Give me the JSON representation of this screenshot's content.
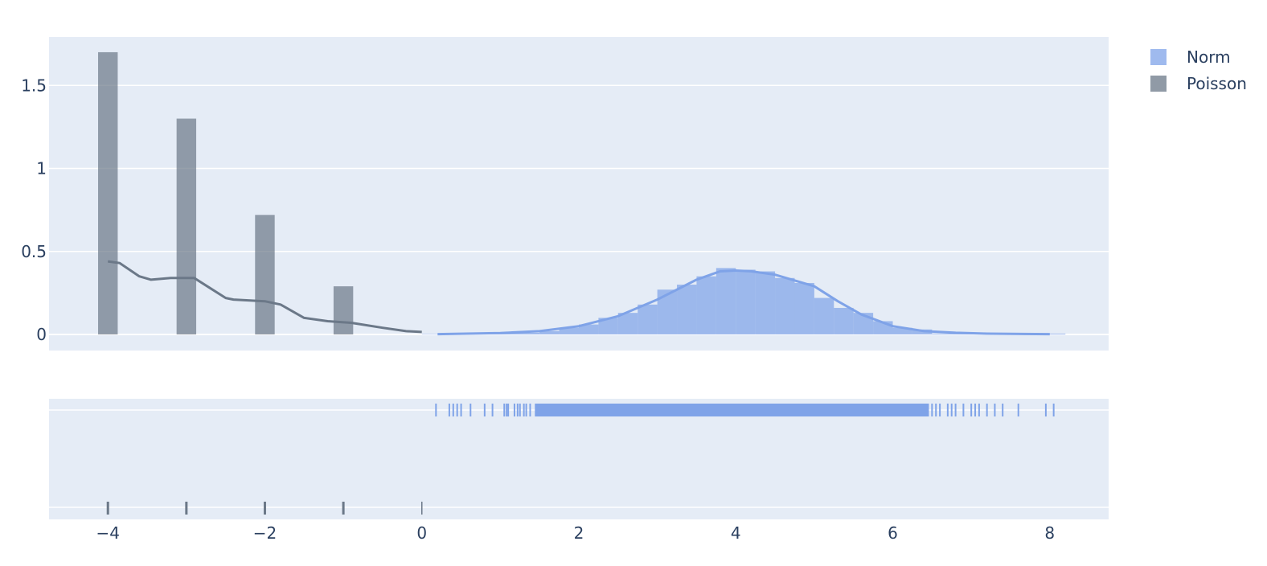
{
  "chart_data": {
    "type": "histogram",
    "colors": {
      "Norm": "#7fa3e8",
      "Poisson": "#6b7888",
      "background": "#e5ecf6",
      "grid": "#ffffff",
      "text": "#2a3f5f"
    },
    "legend": {
      "position": "top-right",
      "entries": [
        "Norm",
        "Poisson"
      ]
    },
    "x_axis": {
      "range": [
        -4.75,
        8.75
      ],
      "ticks": [
        -4,
        -2,
        0,
        2,
        4,
        6,
        8
      ],
      "tick_labels": [
        "−4",
        "−2",
        "0",
        "2",
        "4",
        "6",
        "8"
      ]
    },
    "y_axis": {
      "range": [
        -0.1,
        1.8
      ],
      "ticks": [
        0,
        0.5,
        1,
        1.5
      ],
      "tick_labels": [
        "0",
        "0.5",
        "1",
        "1.5"
      ]
    },
    "series": [
      {
        "name": "Norm",
        "histogram": {
          "bin_width": 0.25,
          "bins": [
            {
              "x0": 0.0,
              "x1": 1.0,
              "y": 0.003
            },
            {
              "x0": 1.0,
              "x1": 1.5,
              "y": 0.01
            },
            {
              "x0": 1.5,
              "x1": 1.75,
              "y": 0.02
            },
            {
              "x0": 1.75,
              "x1": 2.0,
              "y": 0.04
            },
            {
              "x0": 2.0,
              "x1": 2.25,
              "y": 0.06
            },
            {
              "x0": 2.25,
              "x1": 2.5,
              "y": 0.1
            },
            {
              "x0": 2.5,
              "x1": 2.75,
              "y": 0.13
            },
            {
              "x0": 2.75,
              "x1": 3.0,
              "y": 0.18
            },
            {
              "x0": 3.0,
              "x1": 3.25,
              "y": 0.27
            },
            {
              "x0": 3.25,
              "x1": 3.5,
              "y": 0.3
            },
            {
              "x0": 3.5,
              "x1": 3.75,
              "y": 0.35
            },
            {
              "x0": 3.75,
              "x1": 4.0,
              "y": 0.4
            },
            {
              "x0": 4.0,
              "x1": 4.25,
              "y": 0.39
            },
            {
              "x0": 4.25,
              "x1": 4.5,
              "y": 0.38
            },
            {
              "x0": 4.5,
              "x1": 4.75,
              "y": 0.34
            },
            {
              "x0": 4.75,
              "x1": 5.0,
              "y": 0.31
            },
            {
              "x0": 5.0,
              "x1": 5.25,
              "y": 0.22
            },
            {
              "x0": 5.25,
              "x1": 5.5,
              "y": 0.16
            },
            {
              "x0": 5.5,
              "x1": 5.75,
              "y": 0.13
            },
            {
              "x0": 5.75,
              "x1": 6.0,
              "y": 0.08
            },
            {
              "x0": 6.0,
              "x1": 6.25,
              "y": 0.04
            },
            {
              "x0": 6.25,
              "x1": 6.5,
              "y": 0.03
            },
            {
              "x0": 6.5,
              "x1": 8.2,
              "y": 0.005
            }
          ]
        },
        "kde": {
          "x": [
            0.2,
            1.0,
            1.5,
            2.0,
            2.5,
            3.0,
            3.5,
            3.8,
            4.0,
            4.2,
            4.5,
            5.0,
            5.3,
            5.6,
            6.0,
            6.4,
            6.8,
            7.2,
            8.0
          ],
          "y": [
            0.002,
            0.008,
            0.02,
            0.05,
            0.11,
            0.21,
            0.33,
            0.38,
            0.385,
            0.38,
            0.36,
            0.29,
            0.2,
            0.12,
            0.05,
            0.02,
            0.01,
            0.005,
            0.002
          ]
        },
        "rug": [
          0.18,
          0.35,
          0.4,
          0.45,
          0.5,
          0.62,
          0.8,
          0.9,
          1.05,
          1.08,
          1.1,
          1.18,
          1.22,
          1.25,
          1.3,
          1.33,
          1.38,
          1.45,
          1.5,
          1.55,
          1.6,
          1.65,
          1.68,
          1.72,
          1.76,
          1.8,
          1.84,
          1.9,
          1.95,
          2.0,
          2.1,
          2.2,
          2.3,
          2.4,
          2.5,
          2.6,
          2.7,
          2.8,
          2.9,
          3.0,
          3.1,
          3.2,
          3.3,
          3.4,
          3.5,
          3.6,
          3.7,
          3.8,
          3.9,
          4.0,
          4.1,
          4.2,
          4.3,
          4.4,
          4.5,
          4.6,
          4.7,
          4.8,
          4.9,
          5.0,
          5.1,
          5.2,
          5.3,
          5.4,
          5.5,
          5.6,
          5.7,
          5.8,
          5.9,
          6.0,
          6.05,
          6.1,
          6.15,
          6.2,
          6.25,
          6.3,
          6.35,
          6.4,
          6.45,
          6.5,
          6.55,
          6.6,
          6.7,
          6.75,
          6.8,
          6.9,
          7.0,
          7.05,
          7.1,
          7.2,
          7.3,
          7.4,
          7.6,
          7.95,
          8.05
        ]
      },
      {
        "name": "Poisson",
        "histogram": {
          "bins": [
            {
              "x": -4,
              "y": 1.7
            },
            {
              "x": -3,
              "y": 1.3
            },
            {
              "x": -2,
              "y": 0.72
            },
            {
              "x": -1,
              "y": 0.29
            }
          ],
          "bar_width": 0.25
        },
        "kde": {
          "x": [
            -4.0,
            -3.85,
            -3.6,
            -3.45,
            -3.2,
            -2.9,
            -2.7,
            -2.5,
            -2.4,
            -2.0,
            -1.8,
            -1.5,
            -1.2,
            -0.9,
            -0.5,
            -0.2,
            0.0
          ],
          "y": [
            0.44,
            0.43,
            0.35,
            0.33,
            0.34,
            0.34,
            0.28,
            0.22,
            0.21,
            0.2,
            0.18,
            0.1,
            0.08,
            0.07,
            0.04,
            0.02,
            0.015
          ]
        },
        "rug": [
          -4,
          -3,
          -2,
          -1,
          0
        ]
      }
    ]
  }
}
